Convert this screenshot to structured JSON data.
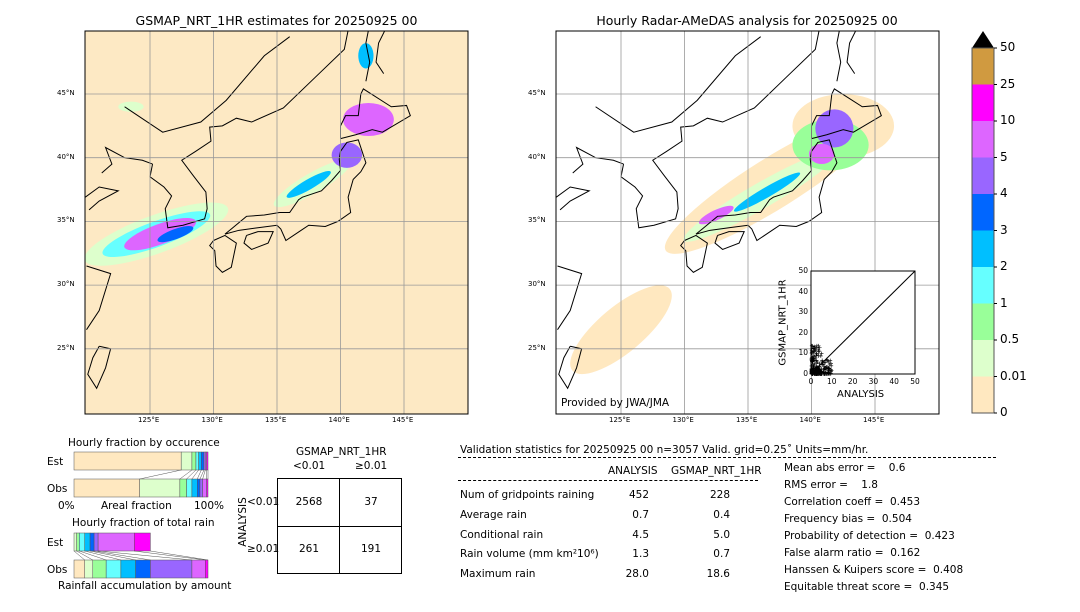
{
  "left_map": {
    "title": "GSMAP_NRT_1HR estimates for 20250925 00"
  },
  "right_map": {
    "title": "Hourly Radar-AMeDAS analysis for 20250925 00",
    "credit": "Provided by JWA/JMA"
  },
  "lat_labels": [
    "45°N",
    "40°N",
    "35°N",
    "30°N",
    "25°N"
  ],
  "lon_labels": [
    "125°E",
    "130°E",
    "135°E",
    "140°E",
    "145°E"
  ],
  "colorbar": {
    "labels": [
      "50",
      "25",
      "10",
      "5",
      "4",
      "3",
      "2",
      "1",
      "0.5",
      "0.01",
      "0"
    ],
    "colors": [
      "#d09a40",
      "#ff00ff",
      "#dd66ff",
      "#9966ff",
      "#0066ff",
      "#00bfff",
      "#66ffff",
      "#99ff99",
      "#ddffcc",
      "#ffe8c0"
    ],
    "extend_color": "#000000"
  },
  "scatter": {
    "xlabel": "ANALYSIS",
    "ylabel": "GSMAP_NRT_1HR",
    "ticks": [
      "0",
      "10",
      "20",
      "30",
      "40",
      "50"
    ],
    "xlim": [
      0,
      50
    ],
    "ylim": [
      0,
      50
    ]
  },
  "occurrence": {
    "title": "Hourly fraction by occurence",
    "est_label": "Est",
    "obs_label": "Obs",
    "xlabel": "Areal fraction",
    "left": "0%",
    "right": "100%",
    "est": [
      0.8,
      0.08,
      0.03,
      0.02,
      0.02,
      0.02,
      0.01,
      0.01,
      0.01
    ],
    "obs": [
      0.49,
      0.3,
      0.05,
      0.04,
      0.04,
      0.02,
      0.02,
      0.03,
      0.01
    ]
  },
  "total_rain": {
    "title": "Hourly fraction of total rain",
    "est_label": "Est",
    "obs_label": "Obs",
    "xlabel": "Rainfall accumulation by amount",
    "est": [
      0,
      0.02,
      0.02,
      0.04,
      0.04,
      0.03,
      0.03,
      0.27,
      0.12
    ],
    "obs": [
      0.08,
      0.06,
      0.1,
      0.11,
      0.11,
      0.11,
      0.31,
      0.1,
      0.02
    ]
  },
  "contingency": {
    "title": "GSMAP_NRT_1HR",
    "col_labels": [
      "<0.01",
      "≥0.01"
    ],
    "row_title": "ANALYSIS",
    "row_labels": [
      "<0.01",
      "≥0.01"
    ],
    "cells": [
      [
        "2568",
        "37"
      ],
      [
        "261",
        "191"
      ]
    ]
  },
  "stats": {
    "header": "Validation statistics for 20250925 00  n=3057 Valid. grid=0.25˚ Units=mm/hr.",
    "columns": [
      "ANALYSIS",
      "GSMAP_NRT_1HR"
    ],
    "rows": [
      {
        "label": "Num of gridpoints raining",
        "a": "452",
        "g": "228"
      },
      {
        "label": "Average rain",
        "a": "0.7",
        "g": "0.4"
      },
      {
        "label": "Conditional rain",
        "a": "4.5",
        "g": "5.0"
      },
      {
        "label": "Rain volume (mm km²10⁶)",
        "a": "1.3",
        "g": "0.7"
      },
      {
        "label": "Maximum rain",
        "a": "28.0",
        "g": "18.6"
      }
    ],
    "scores": [
      "Mean abs error =    0.6",
      "RMS error =    1.8",
      "Correlation coeff =  0.453",
      "Frequency bias =  0.504",
      "Probability of detection =  0.423",
      "False alarm ratio =  0.162",
      "Hanssen & Kuipers score =  0.408",
      "Equitable threat score =  0.345"
    ]
  }
}
